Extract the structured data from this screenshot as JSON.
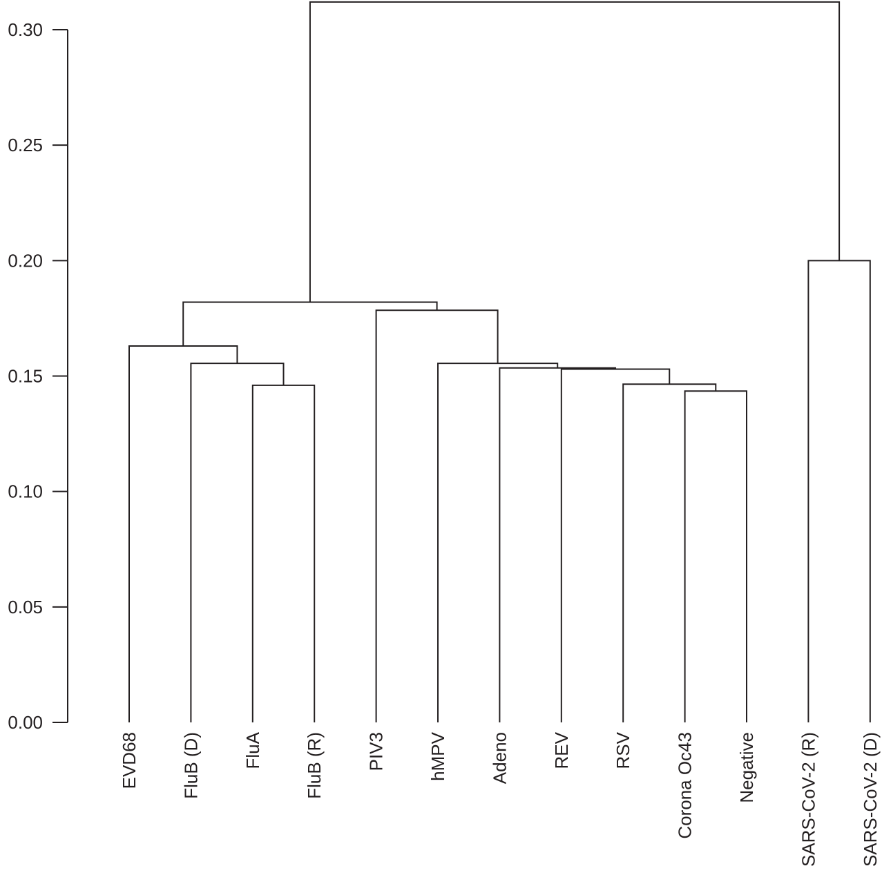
{
  "chart_data": {
    "type": "dendrogram",
    "title": "",
    "xlabel": "",
    "ylabel": "",
    "ylim": [
      0,
      0.31
    ],
    "y_ticks": [
      "0.00",
      "0.05",
      "0.10",
      "0.15",
      "0.20",
      "0.25",
      "0.30"
    ],
    "y_tick_values": [
      0,
      0.05,
      0.1,
      0.15,
      0.2,
      0.25,
      0.3
    ],
    "leaves": [
      "EVD68",
      "FluB (D)",
      "FluA",
      "FluB (R)",
      "PIV3",
      "hMPV",
      "Adeno",
      "REV",
      "RSV",
      "Corona Oc43",
      "Negative",
      "SARS-CoV-2 (R)",
      "SARS-CoV-2 (D)"
    ],
    "merges": [
      {
        "id": "m1",
        "left": "FluA",
        "right": "FluB (R)",
        "height": 0.146
      },
      {
        "id": "m2",
        "left": "FluB (D)",
        "right": "m1",
        "height": 0.1555
      },
      {
        "id": "m3",
        "left": "EVD68",
        "right": "m2",
        "height": 0.163
      },
      {
        "id": "m4",
        "left": "Corona Oc43",
        "right": "Negative",
        "height": 0.1435
      },
      {
        "id": "m5",
        "left": "RSV",
        "right": "m4",
        "height": 0.1465
      },
      {
        "id": "m6",
        "left": "REV",
        "right": "m5",
        "height": 0.153
      },
      {
        "id": "m7",
        "left": "Adeno",
        "right": "m6",
        "height": 0.1535
      },
      {
        "id": "m8",
        "left": "hMPV",
        "right": "m7",
        "height": 0.1555
      },
      {
        "id": "m9",
        "left": "PIV3",
        "right": "m8",
        "height": 0.1785
      },
      {
        "id": "m10",
        "left": "m3",
        "right": "m9",
        "height": 0.182
      },
      {
        "id": "m11",
        "left": "SARS-CoV-2 (R)",
        "right": "SARS-CoV-2 (D)",
        "height": 0.2
      },
      {
        "id": "m12",
        "left": "m10",
        "right": "m11",
        "height": 0.312
      }
    ],
    "line_color": "#231f20"
  }
}
